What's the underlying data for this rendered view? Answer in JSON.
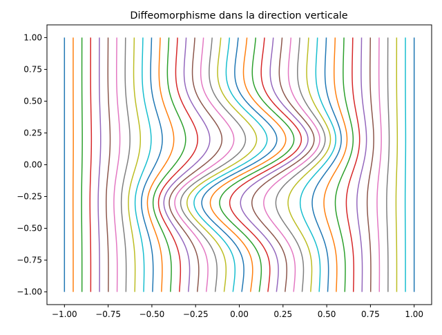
{
  "chart_data": {
    "type": "line",
    "title": "Diffeomorphisme dans la direction verticale",
    "xlabel": "",
    "ylabel": "",
    "xlim": [
      -1.1,
      1.1
    ],
    "ylim": [
      -1.1,
      1.1
    ],
    "x_ticks": [
      -1.0,
      -0.75,
      -0.5,
      -0.25,
      0.0,
      0.25,
      0.5,
      0.75,
      1.0
    ],
    "x_tick_labels": [
      "−1.00",
      "−0.75",
      "−0.50",
      "−0.25",
      "0.00",
      "0.25",
      "0.50",
      "0.75",
      "1.00"
    ],
    "y_ticks": [
      1.0,
      0.75,
      0.5,
      0.25,
      0.0,
      -0.25,
      -0.5,
      -0.75,
      -1.0
    ],
    "y_tick_labels": [
      "1.00",
      "0.75",
      "0.50",
      "0.25",
      "0.00",
      "−0.25",
      "−0.50",
      "−0.75",
      "−1.00"
    ],
    "grid": false,
    "legend": "none",
    "series_count": 41,
    "curve_family": {
      "x_start": [
        -1.0,
        1.0
      ],
      "y_range": [
        -1.0,
        1.0
      ],
      "description": "vertical lines x = c twisted by a diffeomorphism around the origin",
      "max_shift": 0.28,
      "shift_center": [
        0.05,
        -0.05
      ],
      "shift_spread": 0.55
    },
    "colors": [
      "#1f77b4",
      "#ff7f0e",
      "#2ca02c",
      "#d62728",
      "#9467bd",
      "#8c564b",
      "#e377c2",
      "#7f7f7f",
      "#bcbd22",
      "#17becf"
    ]
  }
}
